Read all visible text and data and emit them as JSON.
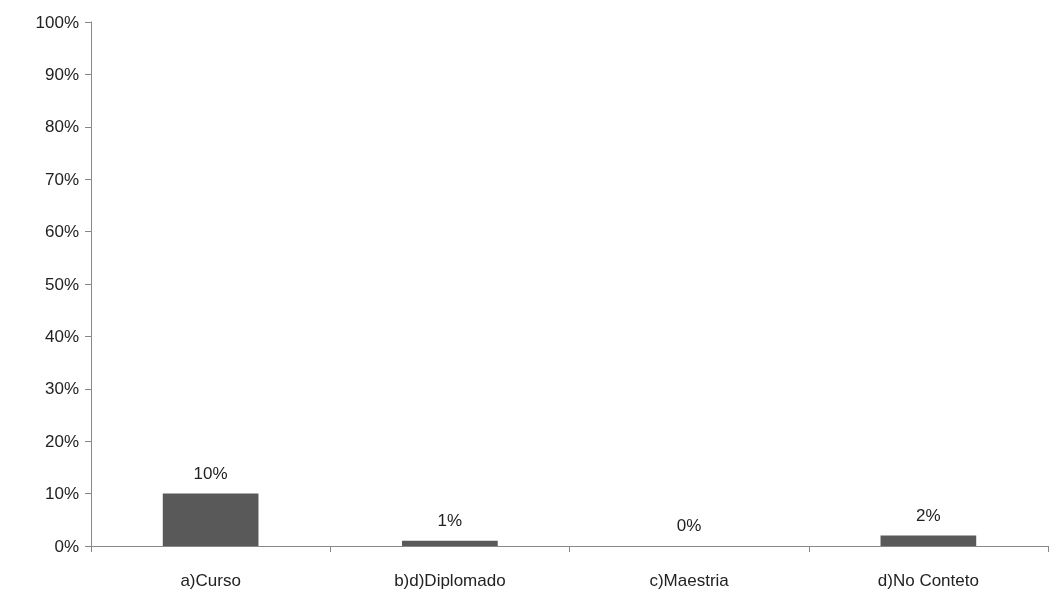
{
  "chart_data": {
    "type": "bar",
    "categories": [
      "a)Curso",
      "b)d)Diplomado",
      "c)Maestria",
      "d)No Conteto"
    ],
    "values": [
      10,
      1,
      0,
      2
    ],
    "value_labels": [
      "10%",
      "1%",
      "0%",
      "2%"
    ],
    "color": "#595959",
    "ylim": [
      0,
      100
    ],
    "yticks": [
      {
        "value": 0,
        "label": "0%"
      },
      {
        "value": 10,
        "label": "10%"
      },
      {
        "value": 20,
        "label": "20%"
      },
      {
        "value": 30,
        "label": "30%"
      },
      {
        "value": 40,
        "label": "40%"
      },
      {
        "value": 50,
        "label": "50%"
      },
      {
        "value": 60,
        "label": "60%"
      },
      {
        "value": 70,
        "label": "70%"
      },
      {
        "value": 80,
        "label": "80%"
      },
      {
        "value": 90,
        "label": "90%"
      },
      {
        "value": 100,
        "label": "100%"
      }
    ],
    "grid": false
  }
}
